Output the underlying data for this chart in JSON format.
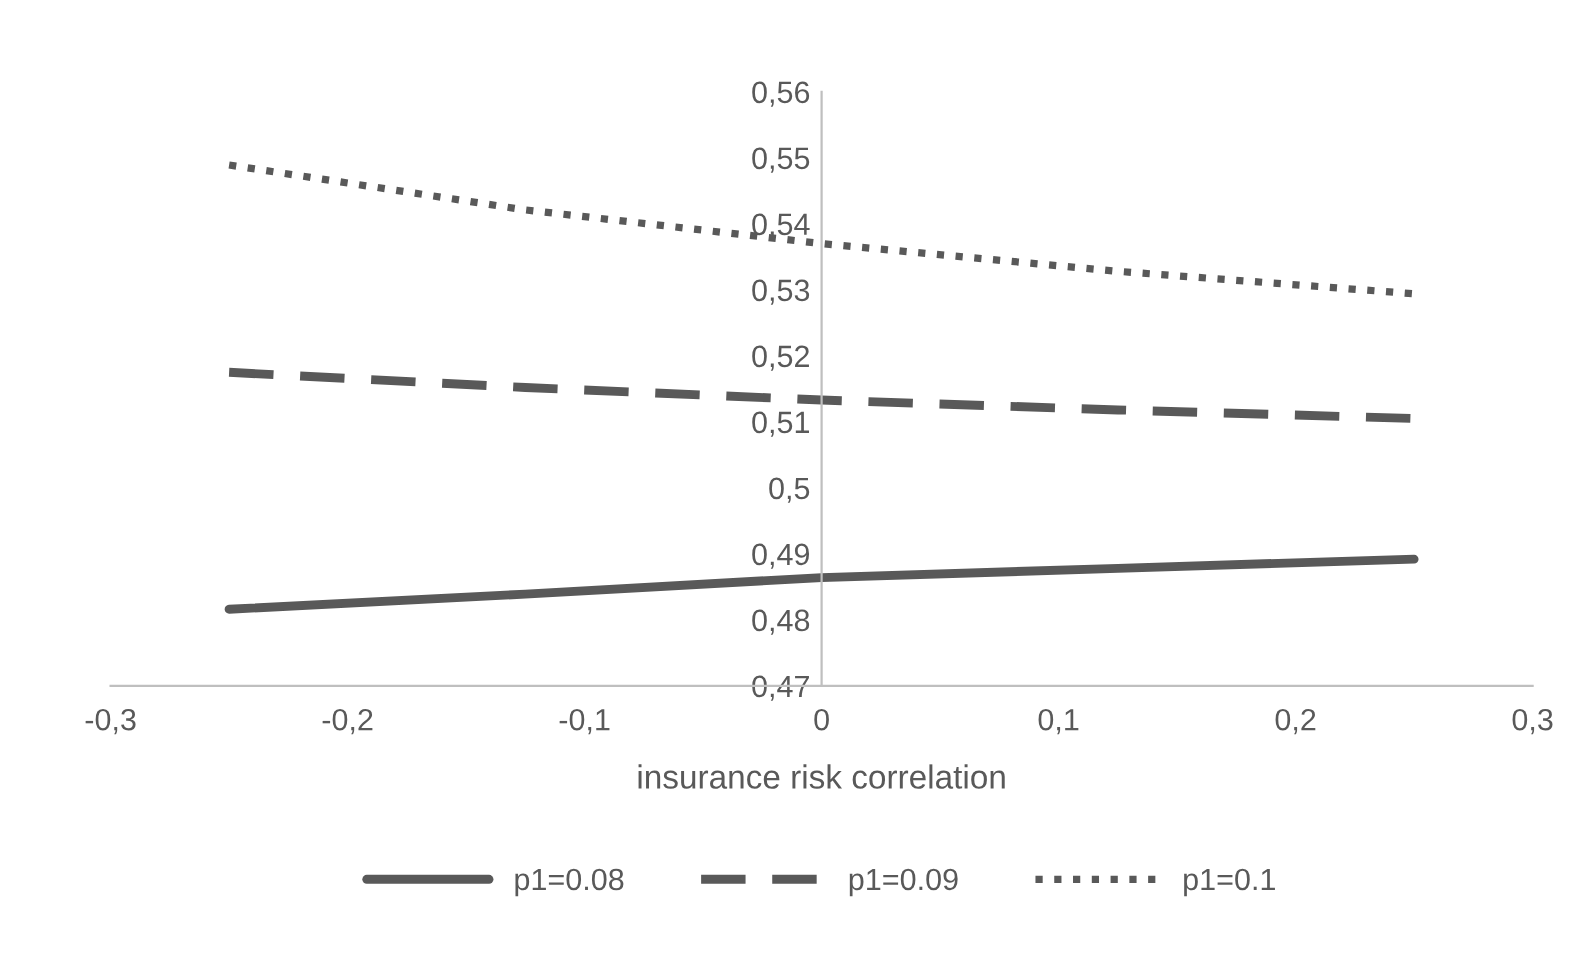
{
  "chart_data": {
    "type": "line",
    "xlabel": "insurance risk correlation",
    "x": [
      -0.25,
      -0.125,
      0,
      0.125,
      0.25
    ],
    "series": [
      {
        "name": "p1=0.08",
        "color": "#595959",
        "line_style": "solid",
        "values": [
          0.4816,
          0.4839,
          0.4864,
          0.4878,
          0.4892
        ]
      },
      {
        "name": "p1=0.09",
        "color": "#595959",
        "line_style": "dashed",
        "values": [
          0.5175,
          0.5152,
          0.5133,
          0.5118,
          0.5105
        ]
      },
      {
        "name": "p1=0.1",
        "color": "#595959",
        "line_style": "dotted",
        "values": [
          0.5489,
          0.5421,
          0.537,
          0.5328,
          0.5294
        ]
      }
    ],
    "xlim": [
      -0.3,
      0.3
    ],
    "xticks": [
      {
        "value": -0.3,
        "label": "-0,3"
      },
      {
        "value": -0.2,
        "label": "-0,2"
      },
      {
        "value": -0.1,
        "label": "-0,1"
      },
      0,
      {
        "value": 0.1,
        "label": "0,1"
      },
      {
        "value": 0.2,
        "label": "0,2"
      },
      {
        "value": 0.3,
        "label": "0,3"
      }
    ],
    "ylim": [
      0.47,
      0.56
    ],
    "yticks": [
      {
        "value": 0.47,
        "label": "0,47"
      },
      {
        "value": 0.48,
        "label": "0,48"
      },
      {
        "value": 0.49,
        "label": "0,49"
      },
      {
        "value": 0.5,
        "label": "0,5"
      },
      {
        "value": 0.51,
        "label": "0,51"
      },
      {
        "value": 0.52,
        "label": "0,52"
      },
      {
        "value": 0.53,
        "label": "0,53"
      },
      {
        "value": 0.54,
        "label": "0,54"
      },
      {
        "value": 0.55,
        "label": "0,55"
      },
      {
        "value": 0.56,
        "label": "0,56"
      }
    ],
    "grid": false,
    "legend": "bottom",
    "marker": "none"
  }
}
